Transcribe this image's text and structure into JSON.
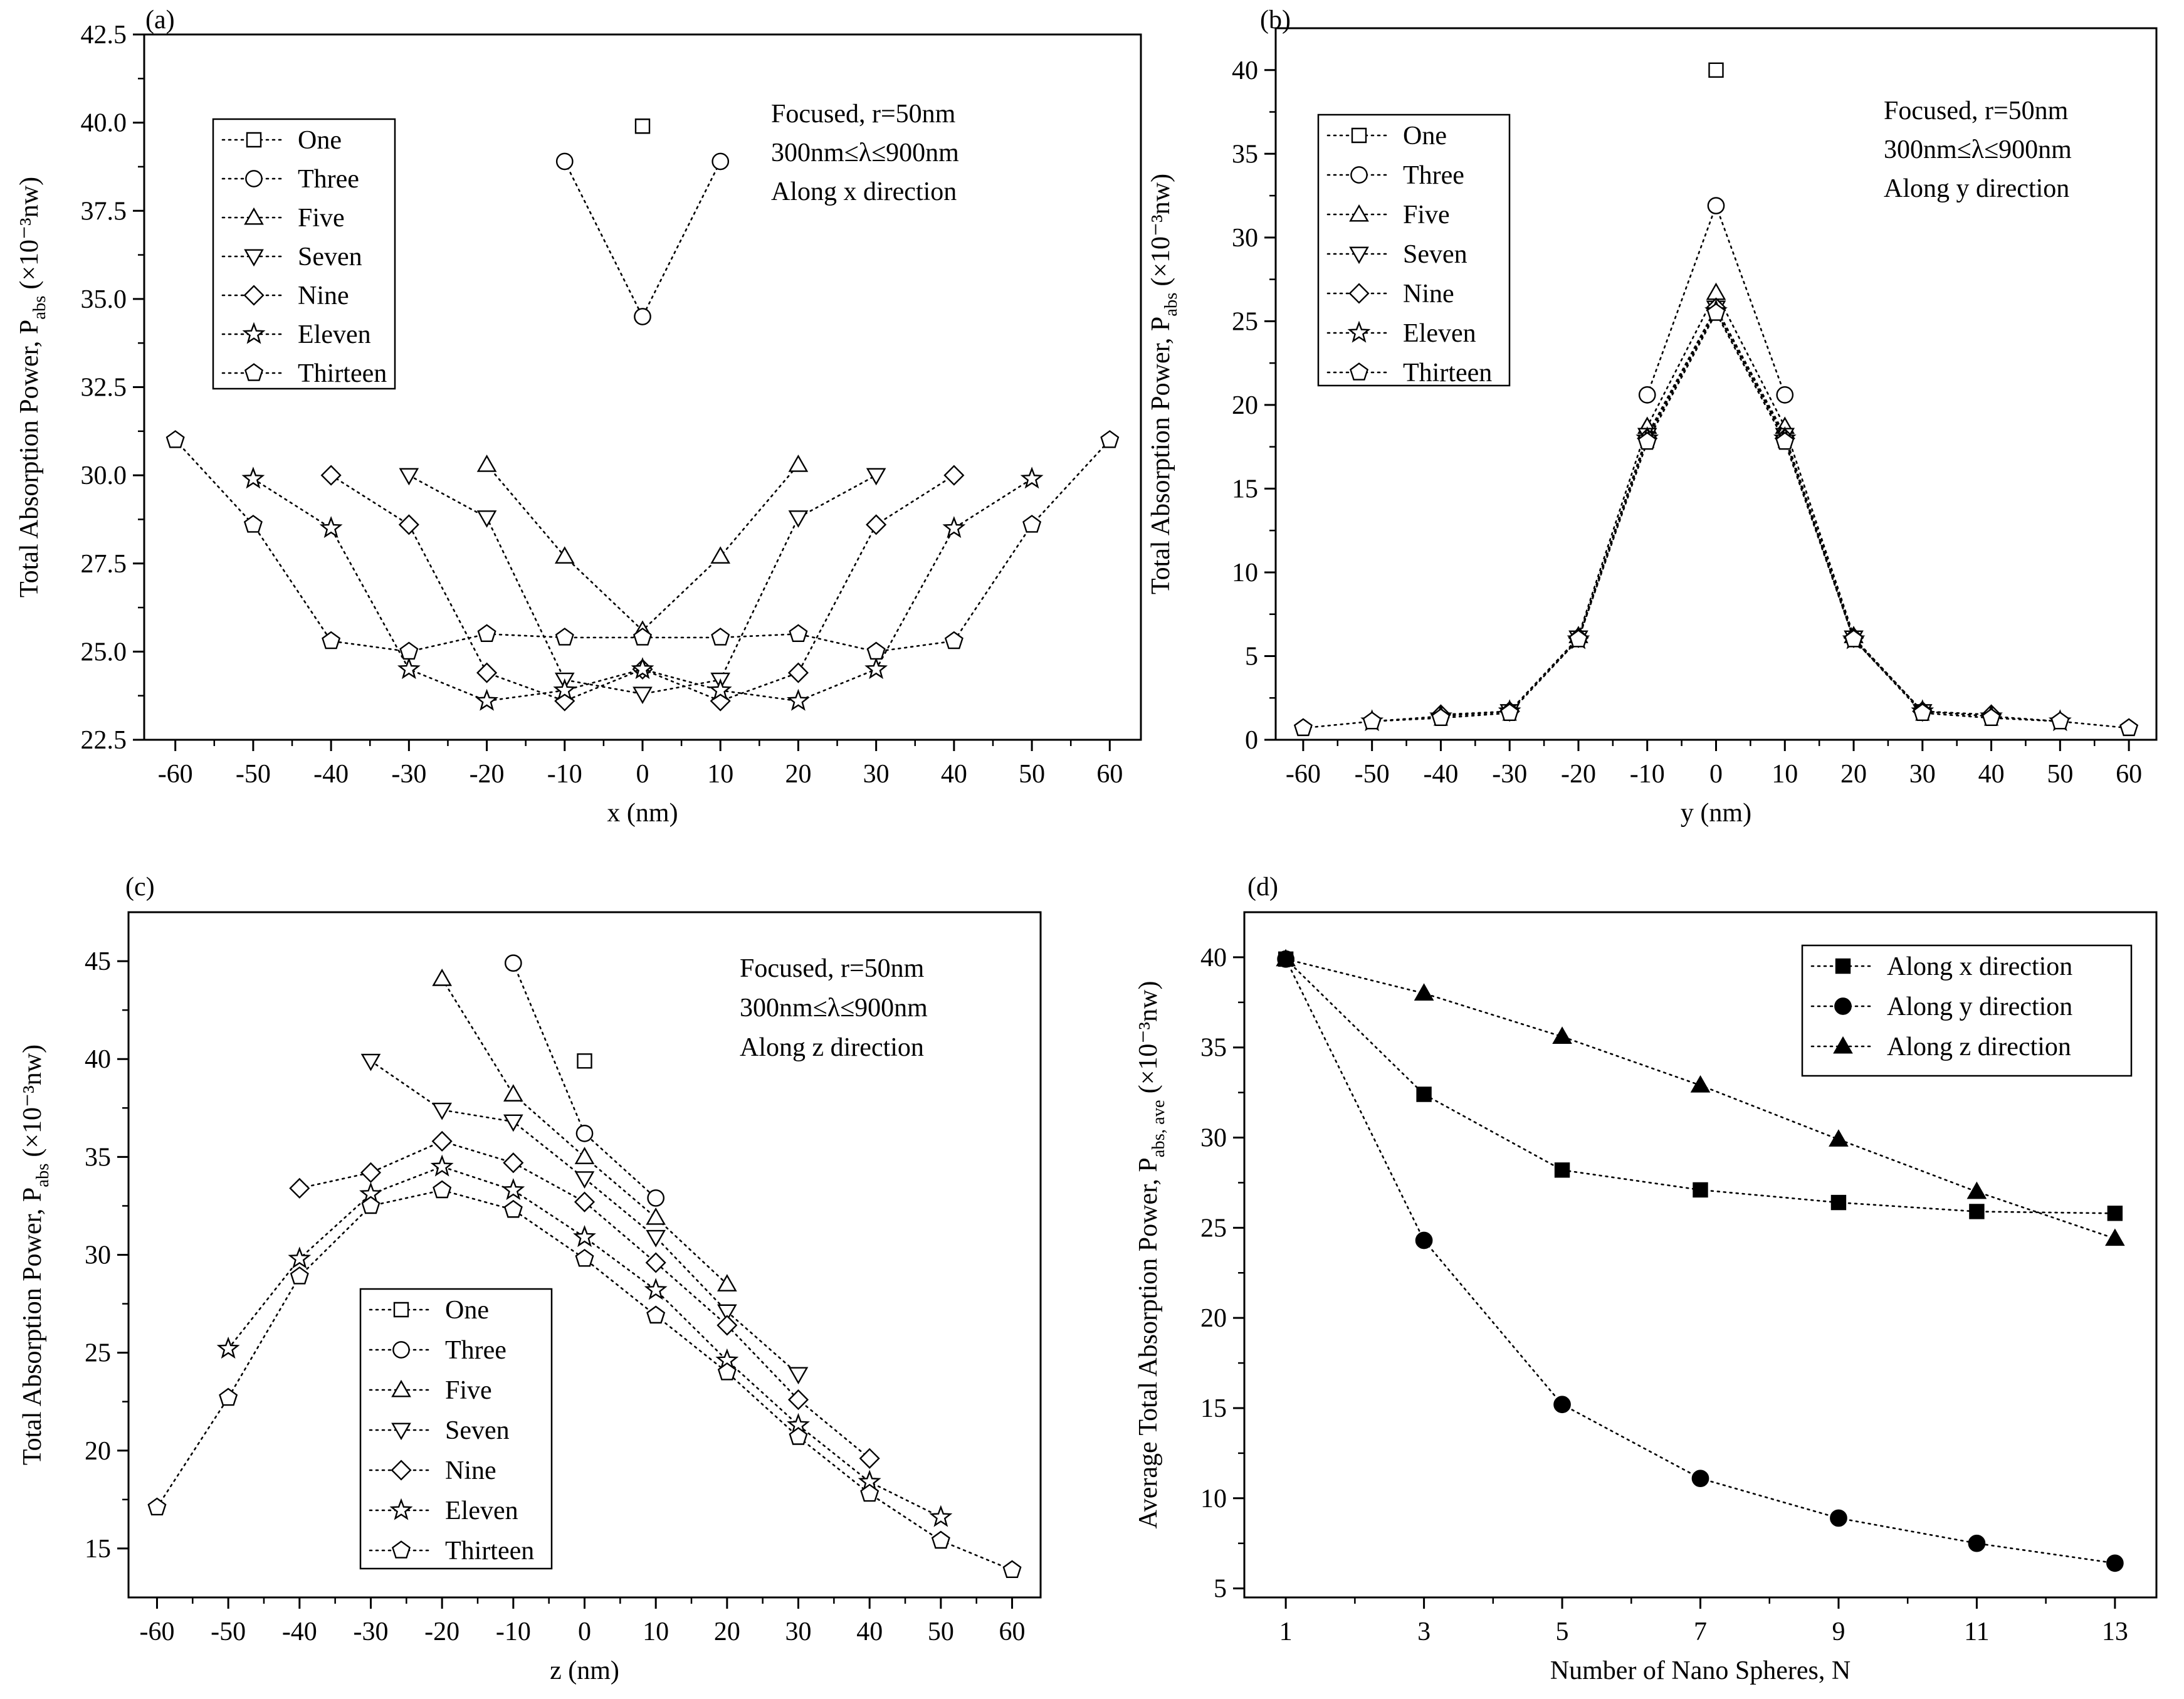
{
  "chart_data": [
    {
      "panel_label": "(a)",
      "type": "line",
      "xlabel": "x (nm)",
      "ylabel_main": "Total Absorption Power, P",
      "ylabel_sub": "abs",
      "ylabel_unit": "(×10⁻³nw)",
      "x_ticks": [
        "-60",
        "-50",
        "-40",
        "-30",
        "-20",
        "-10",
        "0",
        "10",
        "20",
        "30",
        "40",
        "50",
        "60"
      ],
      "y_ticks": [
        "22.5",
        "25.0",
        "27.5",
        "30.0",
        "32.5",
        "35.0",
        "37.5",
        "40.0",
        "42.5"
      ],
      "xlim": [
        -64,
        64
      ],
      "ylim": [
        22.5,
        42.5
      ],
      "annotation": [
        "Focused, r=50nm",
        "300nm≤λ≤900nm",
        "Along x direction"
      ],
      "legend_position": "top-left",
      "series": [
        {
          "name": "One",
          "marker": "square",
          "x": [
            0
          ],
          "y": [
            39.9
          ]
        },
        {
          "name": "Three",
          "marker": "circle",
          "x": [
            -10,
            0,
            10
          ],
          "y": [
            38.9,
            34.5,
            38.9
          ]
        },
        {
          "name": "Five",
          "marker": "triangle-up",
          "x": [
            -20,
            -10,
            0,
            10,
            20
          ],
          "y": [
            30.3,
            27.7,
            25.6,
            27.7,
            30.3
          ]
        },
        {
          "name": "Seven",
          "marker": "triangle-down",
          "x": [
            -30,
            -20,
            -10,
            0,
            10,
            20,
            30
          ],
          "y": [
            30.0,
            28.8,
            24.2,
            23.8,
            24.2,
            28.8,
            30.0
          ]
        },
        {
          "name": "Nine",
          "marker": "diamond",
          "x": [
            -40,
            -30,
            -20,
            -10,
            0,
            10,
            20,
            30,
            40
          ],
          "y": [
            30.0,
            28.6,
            24.4,
            23.6,
            24.5,
            23.6,
            24.4,
            28.6,
            30.0
          ]
        },
        {
          "name": "Eleven",
          "marker": "star",
          "x": [
            -50,
            -40,
            -30,
            -20,
            -10,
            0,
            10,
            20,
            30,
            40,
            50
          ],
          "y": [
            29.9,
            28.5,
            24.5,
            23.6,
            23.9,
            24.5,
            23.9,
            23.6,
            24.5,
            28.5,
            29.9
          ]
        },
        {
          "name": "Thirteen",
          "marker": "pentagon",
          "x": [
            -60,
            -50,
            -40,
            -30,
            -20,
            -10,
            0,
            10,
            20,
            30,
            40,
            50,
            60
          ],
          "y": [
            31.0,
            28.6,
            25.3,
            25.0,
            25.5,
            25.4,
            25.4,
            25.4,
            25.5,
            25.0,
            25.3,
            28.6,
            31.0
          ]
        }
      ]
    },
    {
      "panel_label": "(b)",
      "type": "line",
      "xlabel": "y (nm)",
      "ylabel_main": "Total Absorption Power, P",
      "ylabel_sub": "abs",
      "ylabel_unit": "(×10⁻³nw)",
      "x_ticks": [
        "-60",
        "-50",
        "-40",
        "-30",
        "-20",
        "-10",
        "0",
        "10",
        "20",
        "30",
        "40",
        "50",
        "60"
      ],
      "y_ticks": [
        "0",
        "5",
        "10",
        "15",
        "20",
        "25",
        "30",
        "35",
        "40"
      ],
      "xlim": [
        -64,
        64
      ],
      "ylim": [
        0,
        42.5
      ],
      "annotation": [
        "Focused, r=50nm",
        "300nm≤λ≤900nm",
        "Along y direction"
      ],
      "legend_position": "top-left",
      "series": [
        {
          "name": "One",
          "marker": "square",
          "x": [
            0
          ],
          "y": [
            40.0
          ]
        },
        {
          "name": "Three",
          "marker": "circle",
          "x": [
            -10,
            0,
            10
          ],
          "y": [
            20.6,
            31.9,
            20.6
          ]
        },
        {
          "name": "Five",
          "marker": "triangle-up",
          "x": [
            -20,
            -10,
            0,
            10,
            20
          ],
          "y": [
            6.2,
            18.7,
            26.7,
            18.7,
            6.2
          ]
        },
        {
          "name": "Seven",
          "marker": "triangle-down",
          "x": [
            -30,
            -20,
            -10,
            0,
            10,
            20,
            30
          ],
          "y": [
            1.7,
            6.1,
            18.2,
            25.8,
            18.2,
            6.1,
            1.7
          ]
        },
        {
          "name": "Nine",
          "marker": "diamond",
          "x": [
            -40,
            -30,
            -20,
            -10,
            0,
            10,
            20,
            30,
            40
          ],
          "y": [
            1.5,
            1.7,
            6.1,
            18.0,
            25.8,
            18.0,
            6.1,
            1.7,
            1.5
          ]
        },
        {
          "name": "Eleven",
          "marker": "star",
          "x": [
            -50,
            -40,
            -30,
            -20,
            -10,
            0,
            10,
            20,
            30,
            40,
            50
          ],
          "y": [
            1.1,
            1.4,
            1.7,
            6.0,
            18.0,
            25.6,
            18.0,
            6.0,
            1.7,
            1.4,
            1.1
          ]
        },
        {
          "name": "Thirteen",
          "marker": "pentagon",
          "x": [
            -60,
            -50,
            -40,
            -30,
            -20,
            -10,
            0,
            10,
            20,
            30,
            40,
            50,
            60
          ],
          "y": [
            0.7,
            1.1,
            1.3,
            1.6,
            6.0,
            17.8,
            25.5,
            17.8,
            6.0,
            1.6,
            1.3,
            1.1,
            0.7
          ]
        }
      ]
    },
    {
      "panel_label": "(c)",
      "type": "line",
      "xlabel": "z (nm)",
      "ylabel_main": "Total Absorption Power, P",
      "ylabel_sub": "abs",
      "ylabel_unit": "(×10⁻³nw)",
      "x_ticks": [
        "-60",
        "-50",
        "-40",
        "-30",
        "-20",
        "-10",
        "0",
        "10",
        "20",
        "30",
        "40",
        "50",
        "60"
      ],
      "y_ticks": [
        "15",
        "20",
        "25",
        "30",
        "35",
        "40",
        "45"
      ],
      "xlim": [
        -64,
        64
      ],
      "ylim": [
        12.5,
        47.5
      ],
      "annotation": [
        "Focused, r=50nm",
        "300nm≤λ≤900nm",
        "Along z direction"
      ],
      "legend_position": "bottom-center",
      "series": [
        {
          "name": "One",
          "marker": "square",
          "x": [
            0
          ],
          "y": [
            39.9
          ]
        },
        {
          "name": "Three",
          "marker": "circle",
          "x": [
            -10,
            0,
            10
          ],
          "y": [
            44.9,
            36.2,
            32.9
          ]
        },
        {
          "name": "Five",
          "marker": "triangle-up",
          "x": [
            -20,
            -10,
            0,
            10,
            20
          ],
          "y": [
            44.1,
            38.2,
            35.0,
            31.9,
            28.5
          ]
        },
        {
          "name": "Seven",
          "marker": "triangle-down",
          "x": [
            -30,
            -20,
            -10,
            0,
            10,
            20,
            30
          ],
          "y": [
            39.9,
            37.4,
            36.8,
            33.9,
            30.9,
            27.1,
            23.9
          ]
        },
        {
          "name": "Nine",
          "marker": "diamond",
          "x": [
            -40,
            -30,
            -20,
            -10,
            0,
            10,
            20,
            30,
            40
          ],
          "y": [
            33.4,
            34.2,
            35.8,
            34.7,
            32.7,
            29.6,
            26.4,
            22.6,
            19.6
          ]
        },
        {
          "name": "Eleven",
          "marker": "star",
          "x": [
            -50,
            -40,
            -30,
            -20,
            -10,
            0,
            10,
            20,
            30,
            40,
            50
          ],
          "y": [
            25.2,
            29.8,
            33.1,
            34.5,
            33.3,
            30.9,
            28.2,
            24.6,
            21.3,
            18.4,
            16.6
          ]
        },
        {
          "name": "Thirteen",
          "marker": "pentagon",
          "x": [
            -60,
            -50,
            -40,
            -30,
            -20,
            -10,
            0,
            10,
            20,
            30,
            40,
            50,
            60
          ],
          "y": [
            17.1,
            22.7,
            28.9,
            32.5,
            33.3,
            32.3,
            29.8,
            26.9,
            24.0,
            20.7,
            17.8,
            15.4,
            13.9
          ]
        }
      ]
    },
    {
      "panel_label": "(d)",
      "type": "line",
      "xlabel": "Number of Nano Spheres, N",
      "ylabel_main": "Average Total Absorption Power, P",
      "ylabel_sub": "abs, ave",
      "ylabel_unit": "(×10⁻³nw)",
      "x_ticks": [
        "1",
        "3",
        "5",
        "7",
        "9",
        "11",
        "13"
      ],
      "y_ticks": [
        "5",
        "10",
        "15",
        "20",
        "25",
        "30",
        "35",
        "40"
      ],
      "xlim": [
        0.4,
        13.6
      ],
      "ylim": [
        4.5,
        42.5
      ],
      "annotation": [],
      "legend_position": "top-right",
      "series": [
        {
          "name": "Along x direction",
          "marker": "square-filled",
          "x": [
            1,
            3,
            5,
            7,
            9,
            11,
            13
          ],
          "y": [
            39.9,
            32.4,
            28.2,
            27.1,
            26.4,
            25.9,
            25.8
          ]
        },
        {
          "name": "Along y direction",
          "marker": "circle-filled",
          "x": [
            1,
            3,
            5,
            7,
            9,
            11,
            13
          ],
          "y": [
            39.9,
            24.3,
            15.2,
            11.1,
            8.9,
            7.5,
            6.4
          ]
        },
        {
          "name": "Along z direction",
          "marker": "triangle-filled",
          "x": [
            1,
            3,
            5,
            7,
            9,
            11,
            13
          ],
          "y": [
            39.9,
            38.0,
            35.6,
            32.9,
            29.9,
            27.0,
            24.4
          ]
        }
      ]
    }
  ]
}
